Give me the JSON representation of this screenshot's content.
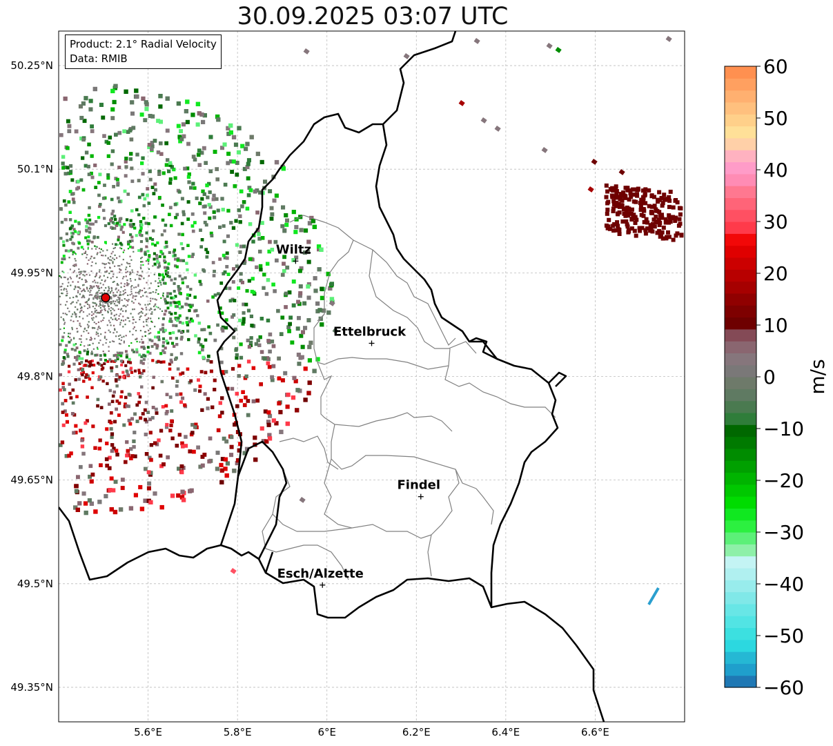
{
  "title": "30.09.2025 03:07 UTC",
  "info": {
    "product": "Product: 2.1° Radial Velocity",
    "data_source": "Data: RMIB"
  },
  "axes": {
    "lon_ticks": [
      5.6,
      5.8,
      6.0,
      6.2,
      6.4,
      6.6
    ],
    "lon_labels": [
      "5.6°E",
      "5.8°E",
      "6°E",
      "6.2°E",
      "6.4°E",
      "6.6°E"
    ],
    "lat_ticks": [
      50.25,
      50.1,
      49.95,
      49.8,
      49.65,
      49.5,
      49.35
    ],
    "lat_labels": [
      "50.25°N",
      "50.1°N",
      "49.95°N",
      "49.8°N",
      "49.65°N",
      "49.5°N",
      "49.35°N"
    ],
    "lon_range": [
      5.4,
      6.8
    ],
    "lat_range": [
      49.3,
      50.3
    ]
  },
  "cities": [
    {
      "name": "Wiltz",
      "lon": 5.93,
      "lat": 49.967
    },
    {
      "name": "Ettelbruck",
      "lon": 6.1,
      "lat": 49.848
    },
    {
      "name": "Findel",
      "lon": 6.21,
      "lat": 49.626
    },
    {
      "name": "Esch/Alzette",
      "lon": 5.99,
      "lat": 49.498
    }
  ],
  "radar_site": {
    "lon": 5.505,
    "lat": 49.914,
    "color": "#e00000"
  },
  "colorbar": {
    "label": "m/s",
    "min": -60,
    "max": 60,
    "ticks": [
      60,
      50,
      40,
      30,
      20,
      10,
      0,
      -10,
      -20,
      -30,
      -40,
      -50,
      -60
    ],
    "tick_labels": [
      "60",
      "50",
      "40",
      "30",
      "20",
      "10",
      "0",
      "−10",
      "−20",
      "−30",
      "−40",
      "−50",
      "−60"
    ],
    "colors": [
      "#1f78b4",
      "#1f9fcc",
      "#25b8d4",
      "#2cd8e0",
      "#3ce0e0",
      "#52e4e4",
      "#68e6e6",
      "#80e8e8",
      "#98ecec",
      "#b0f0f0",
      "#c4f4f4",
      "#8ef0a8",
      "#5cf078",
      "#2cf040",
      "#10e820",
      "#00dc00",
      "#00c800",
      "#00b400",
      "#00a000",
      "#008c00",
      "#007a00",
      "#006800",
      "#2f7d3a",
      "#4a7a50",
      "#5f7a62",
      "#6e7a6a",
      "#7a7878",
      "#86767c",
      "#8a6670",
      "#844a56",
      "#6e0000",
      "#7e0000",
      "#900000",
      "#a60000",
      "#b80000",
      "#cc0000",
      "#e00000",
      "#f20808",
      "#ff3a4a",
      "#ff5062",
      "#ff6478",
      "#ff7890",
      "#ff8cb4",
      "#ff9cc8",
      "#ffb2c0",
      "#ffd0a8",
      "#ffe098",
      "#ffd08a",
      "#ffc07e",
      "#ffb070",
      "#ffa060",
      "#ff9050"
    ]
  },
  "layers": {
    "country_border_color": "#000000",
    "canton_border_color": "#808080",
    "grid_color": "#bbbbbb"
  }
}
